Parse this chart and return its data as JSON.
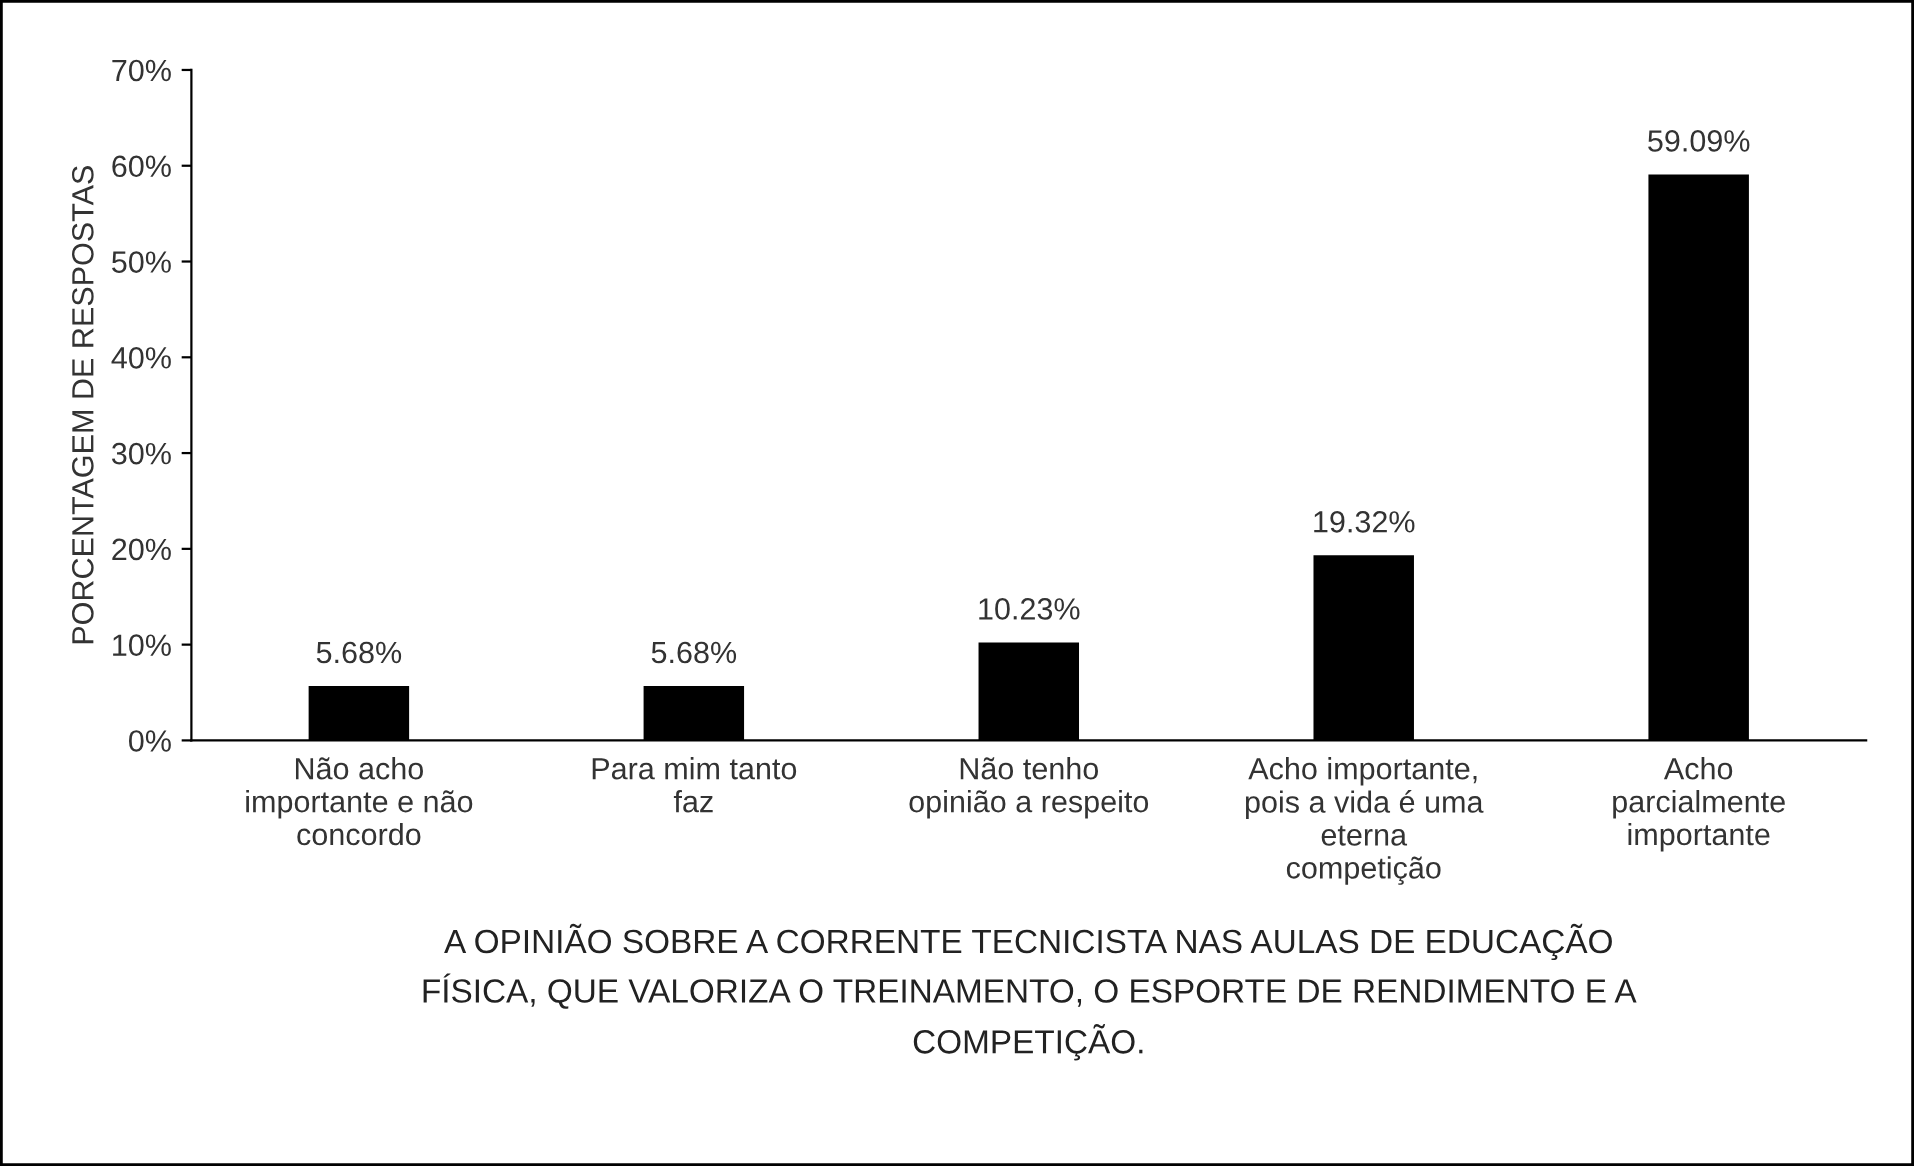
{
  "chart_data": {
    "type": "bar",
    "ylabel": "PORCENTAGEM DE RESPOSTAS",
    "xlabel": "A OPINIÃO SOBRE A CORRENTE TECNICISTA NAS AULAS DE EDUCAÇÃO\nFÍSICA, QUE VALORIZA O TREINAMENTO, O ESPORTE DE RENDIMENTO E A\nCOMPETIÇÃO.",
    "categories": [
      "Não acho\nimportante e não\nconcordo",
      "Para mim tanto\nfaz",
      "Não tenho\nopinião a respeito",
      "Acho importante,\npois a vida é uma\neterna\ncompetição",
      "Acho\nparcialmente\nimportante"
    ],
    "values": [
      5.68,
      5.68,
      10.23,
      19.32,
      59.09
    ],
    "value_labels": [
      "5.68%",
      "5.68%",
      "10.23%",
      "19.32%",
      "59.09%"
    ],
    "color": "#000000",
    "ylim": [
      0,
      70
    ],
    "yticks": [
      {
        "value": 0,
        "label": "0%"
      },
      {
        "value": 10,
        "label": "10%"
      },
      {
        "value": 20,
        "label": "20%"
      },
      {
        "value": 30,
        "label": "30%"
      },
      {
        "value": 40,
        "label": "40%"
      },
      {
        "value": 50,
        "label": "50%"
      },
      {
        "value": 60,
        "label": "60%"
      },
      {
        "value": 70,
        "label": "70%"
      }
    ],
    "grid": false,
    "legend": false
  }
}
